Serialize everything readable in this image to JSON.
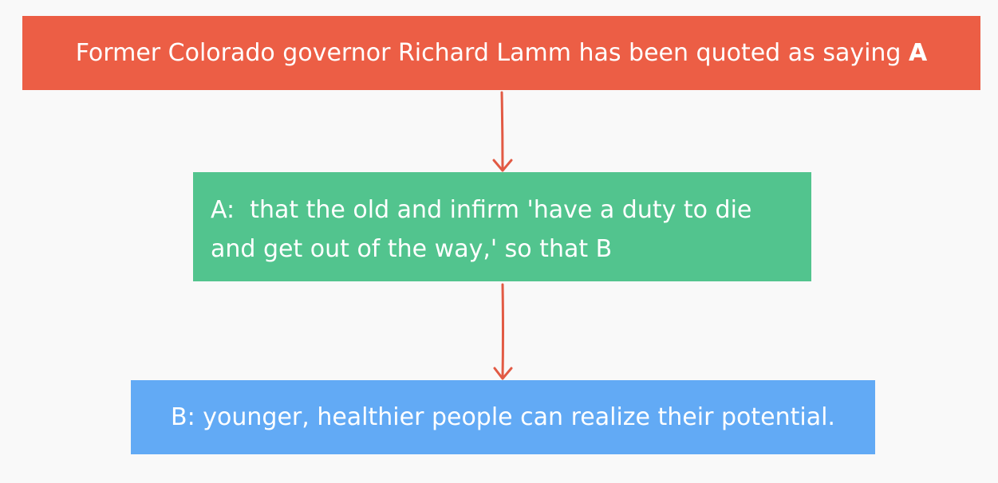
{
  "nodes": {
    "top": {
      "text": "Former Colorado governor Richard Lamm has been quoted as saying ",
      "marker": "A",
      "color": "#ec5e45"
    },
    "middle": {
      "line1": "A:  that the old and infirm 'have a duty to die",
      "line2": "and get out of the way,' so that B",
      "color": "#52c48e"
    },
    "bottom": {
      "text": "B: younger, healthier people can realize their potential.",
      "color": "#62aaf5"
    }
  },
  "connectors": {
    "color": "#e25a44",
    "icon": "arrow-down-icon"
  }
}
